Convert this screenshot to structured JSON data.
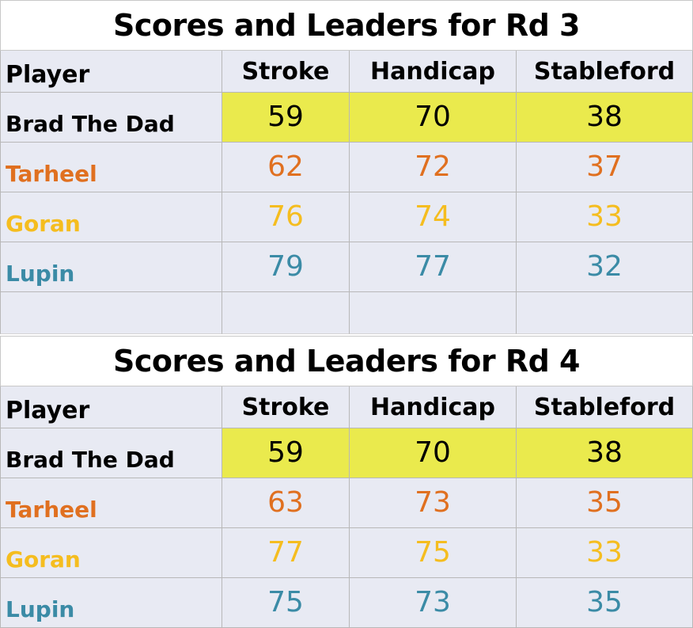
{
  "colors": {
    "header_text": "#000000",
    "highlight": "#eaea4d",
    "cell_background": "#e8eaf3"
  },
  "columns": [
    "Player",
    "Stroke",
    "Handicap",
    "Stableford"
  ],
  "rounds": [
    {
      "title": "Scores and Leaders for Rd 3",
      "rows": [
        {
          "player": "Brad The Dad",
          "color": "#000000",
          "highlight": true,
          "stroke": "59",
          "handicap": "70",
          "stableford": "38"
        },
        {
          "player": "Tarheel",
          "color": "#e07020",
          "highlight": false,
          "stroke": "62",
          "handicap": "72",
          "stableford": "37"
        },
        {
          "player": "Goran",
          "color": "#f5bd1f",
          "highlight": false,
          "stroke": "76",
          "handicap": "74",
          "stableford": "33"
        },
        {
          "player": "Lupin",
          "color": "#3b8ba6",
          "highlight": false,
          "stroke": "79",
          "handicap": "77",
          "stableford": "32"
        }
      ]
    },
    {
      "title": "Scores and Leaders for Rd 4",
      "rows": [
        {
          "player": "Brad The Dad",
          "color": "#000000",
          "highlight": true,
          "stroke": "59",
          "handicap": "70",
          "stableford": "38"
        },
        {
          "player": "Tarheel",
          "color": "#e07020",
          "highlight": false,
          "stroke": "63",
          "handicap": "73",
          "stableford": "35"
        },
        {
          "player": "Goran",
          "color": "#f5bd1f",
          "highlight": false,
          "stroke": "77",
          "handicap": "75",
          "stableford": "33"
        },
        {
          "player": "Lupin",
          "color": "#3b8ba6",
          "highlight": false,
          "stroke": "75",
          "handicap": "73",
          "stableford": "35"
        }
      ]
    }
  ]
}
